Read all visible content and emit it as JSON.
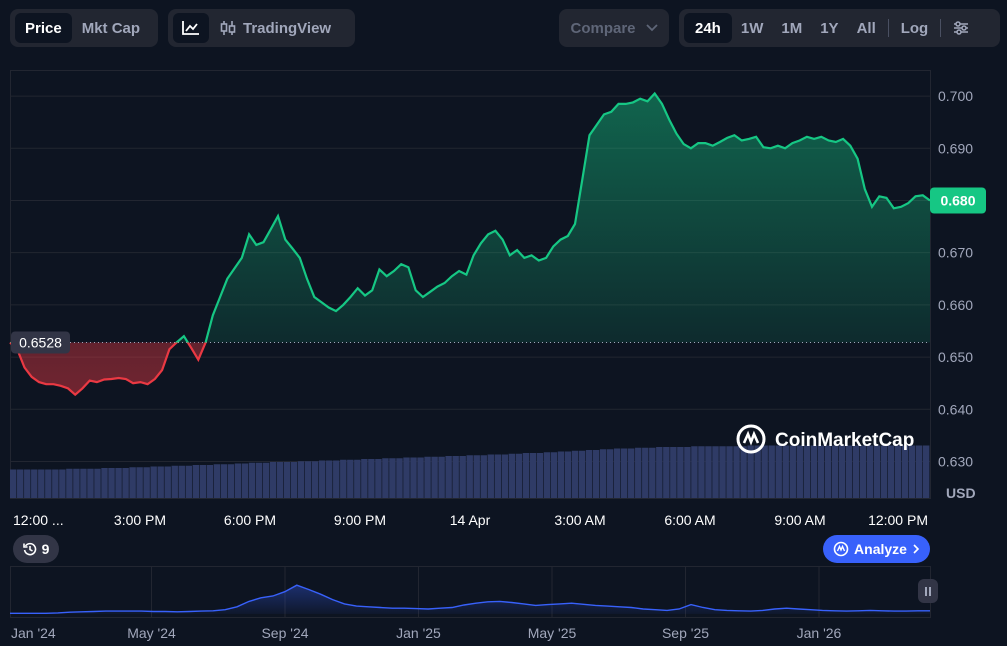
{
  "toolbar": {
    "price_label": "Price",
    "mktcap_label": "Mkt Cap",
    "tradingview_label": "TradingView",
    "compare_label": "Compare",
    "range_24h": "24h",
    "range_1w": "1W",
    "range_1m": "1M",
    "range_1y": "1Y",
    "range_all": "All",
    "log_label": "Log"
  },
  "watermark": "CoinMarketCap",
  "history_count": "9",
  "analyze_label": "Analyze",
  "colors": {
    "up": "#16c784",
    "down": "#ea3943",
    "volume": "#2f3b66",
    "accent": "#3861fb",
    "background": "#0d1421"
  },
  "chart_data": [
    {
      "type": "line",
      "ylim": [
        0.623,
        0.705
      ],
      "y_ticks": [
        "0.700",
        "0.690",
        "0.680",
        "0.670",
        "0.660",
        "0.650",
        "0.640",
        "0.630"
      ],
      "y_unit": "USD",
      "x_ticks": [
        "12:00 ...",
        "3:00 PM",
        "6:00 PM",
        "9:00 PM",
        "14 Apr",
        "3:00 AM",
        "6:00 AM",
        "9:00 AM",
        "12:00 PM"
      ],
      "baseline": 0.6528,
      "baseline_label": "0.6528",
      "current_price": 0.68,
      "current_label": "0.680",
      "grid": true,
      "series": [
        {
          "values": [
            0.6528,
            0.6515,
            0.648,
            0.6462,
            0.6452,
            0.6448,
            0.6448,
            0.6445,
            0.644,
            0.6428,
            0.644,
            0.6455,
            0.6452,
            0.6457,
            0.6458,
            0.646,
            0.6458,
            0.645,
            0.6452,
            0.6448,
            0.6458,
            0.6475,
            0.6515,
            0.6528,
            0.654,
            0.6518,
            0.6495,
            0.6528,
            0.658,
            0.6615,
            0.665,
            0.667,
            0.669,
            0.6735,
            0.6715,
            0.672,
            0.6745,
            0.677,
            0.6725,
            0.6708,
            0.669,
            0.665,
            0.6615,
            0.6605,
            0.6595,
            0.6588,
            0.66,
            0.6615,
            0.6632,
            0.6618,
            0.6628,
            0.6668,
            0.6655,
            0.6665,
            0.6678,
            0.6672,
            0.6628,
            0.6615,
            0.6625,
            0.6635,
            0.6642,
            0.6655,
            0.6665,
            0.6658,
            0.6695,
            0.6718,
            0.6735,
            0.6742,
            0.6725,
            0.6695,
            0.6705,
            0.669,
            0.6695,
            0.6685,
            0.669,
            0.6712,
            0.6725,
            0.6732,
            0.6755,
            0.684,
            0.6925,
            0.6945,
            0.6965,
            0.697,
            0.6985,
            0.6985,
            0.6988,
            0.6995,
            0.699,
            0.7005,
            0.6985,
            0.6955,
            0.6928,
            0.6908,
            0.69,
            0.691,
            0.691,
            0.6905,
            0.6912,
            0.692,
            0.6925,
            0.6915,
            0.6918,
            0.6922,
            0.6902,
            0.69,
            0.6905,
            0.69,
            0.691,
            0.6915,
            0.6922,
            0.6918,
            0.6922,
            0.6915,
            0.6912,
            0.6918,
            0.6905,
            0.688,
            0.6822,
            0.6788,
            0.6808,
            0.6805,
            0.6785,
            0.6788,
            0.6795,
            0.6808,
            0.681,
            0.68
          ]
        }
      ],
      "volume": [
        0.38,
        0.38,
        0.38,
        0.38,
        0.38,
        0.38,
        0.38,
        0.38,
        0.39,
        0.39,
        0.39,
        0.39,
        0.39,
        0.4,
        0.4,
        0.4,
        0.4,
        0.41,
        0.41,
        0.41,
        0.42,
        0.42,
        0.42,
        0.43,
        0.43,
        0.43,
        0.44,
        0.44,
        0.44,
        0.45,
        0.45,
        0.45,
        0.46,
        0.46,
        0.47,
        0.47,
        0.47,
        0.48,
        0.48,
        0.48,
        0.48,
        0.49,
        0.49,
        0.49,
        0.5,
        0.5,
        0.5,
        0.51,
        0.51,
        0.51,
        0.52,
        0.52,
        0.52,
        0.53,
        0.53,
        0.53,
        0.54,
        0.54,
        0.54,
        0.55,
        0.55,
        0.55,
        0.56,
        0.56,
        0.56,
        0.57,
        0.57,
        0.57,
        0.58,
        0.58,
        0.58,
        0.59,
        0.59,
        0.6,
        0.6,
        0.6,
        0.61,
        0.61,
        0.62,
        0.62,
        0.63,
        0.63,
        0.64,
        0.64,
        0.65,
        0.65,
        0.66,
        0.66,
        0.66,
        0.67,
        0.67,
        0.67,
        0.68,
        0.68,
        0.68,
        0.68,
        0.68,
        0.69,
        0.69,
        0.69,
        0.69,
        0.69,
        0.69,
        0.69,
        0.69,
        0.7,
        0.7,
        0.7,
        0.7,
        0.7,
        0.7,
        0.7,
        0.7,
        0.7,
        0.7,
        0.7,
        0.7,
        0.7,
        0.7,
        0.7,
        0.7,
        0.7,
        0.7,
        0.7,
        0.7,
        0.7,
        0.7,
        0.7,
        0.7,
        0.7,
        0.7
      ]
    },
    {
      "type": "area",
      "x_ticks": [
        "Jan '24",
        "May '24",
        "Sep '24",
        "Jan '25",
        "May '25",
        "Sep '25",
        "Jan '26"
      ],
      "values": [
        0.02,
        0.02,
        0.02,
        0.02,
        0.03,
        0.05,
        0.06,
        0.07,
        0.08,
        0.08,
        0.08,
        0.08,
        0.07,
        0.07,
        0.06,
        0.07,
        0.08,
        0.09,
        0.12,
        0.2,
        0.35,
        0.45,
        0.5,
        0.62,
        0.8,
        0.68,
        0.55,
        0.4,
        0.28,
        0.22,
        0.2,
        0.18,
        0.16,
        0.16,
        0.15,
        0.14,
        0.16,
        0.18,
        0.25,
        0.3,
        0.34,
        0.35,
        0.32,
        0.28,
        0.24,
        0.26,
        0.28,
        0.3,
        0.27,
        0.24,
        0.22,
        0.2,
        0.18,
        0.14,
        0.12,
        0.1,
        0.14,
        0.26,
        0.18,
        0.12,
        0.1,
        0.09,
        0.08,
        0.1,
        0.14,
        0.16,
        0.14,
        0.12,
        0.1,
        0.09,
        0.08,
        0.09,
        0.1,
        0.09,
        0.08,
        0.08,
        0.09,
        0.09
      ]
    }
  ]
}
